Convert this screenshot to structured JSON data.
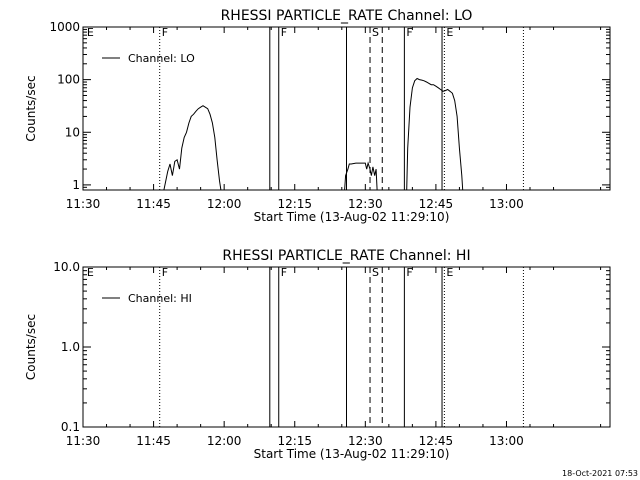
{
  "footer_timestamp": "18-Oct-2021 07:53",
  "chart_data": [
    {
      "type": "line",
      "title": "RHESSI PARTICLE_RATE Channel: LO",
      "xlabel": "Start Time (13-Aug-02 11:29:10)",
      "ylabel": "Counts/sec",
      "yscale": "log",
      "ylim": [
        0.8,
        1000
      ],
      "xlim_minutes": [
        0,
        112
      ],
      "x_tick_labels": [
        "11:30",
        "11:45",
        "12:00",
        "12:15",
        "12:30",
        "12:45",
        "13:00"
      ],
      "x_ticks_minutes": [
        0,
        15,
        30,
        45,
        60,
        75,
        90
      ],
      "y_ticks": [
        1,
        10,
        100,
        1000
      ],
      "y_tick_labels": [
        "1",
        "10",
        "100",
        "1000"
      ],
      "legend": {
        "label": "Channel: LO",
        "placement": "top-left"
      },
      "markers": [
        {
          "minute": 0.4,
          "label": "E",
          "style": "none"
        },
        {
          "minute": 16.3,
          "label": "F",
          "style": "dotted"
        },
        {
          "minute": 39.7,
          "label": "",
          "style": "solid"
        },
        {
          "minute": 41.6,
          "label": "F",
          "style": "solid"
        },
        {
          "minute": 56.0,
          "label": "",
          "style": "solid"
        },
        {
          "minute": 61.0,
          "label": "S",
          "style": "dashed"
        },
        {
          "minute": 63.6,
          "label": "",
          "style": "dashed"
        },
        {
          "minute": 68.3,
          "label": "F",
          "style": "solid"
        },
        {
          "minute": 76.3,
          "label": "",
          "style": "solid"
        },
        {
          "minute": 76.8,
          "label": "E",
          "style": "dotted"
        },
        {
          "minute": 93.6,
          "label": "",
          "style": "dotted"
        }
      ],
      "series": [
        {
          "segments": [
            [
              [
                17.2,
                0.8
              ],
              [
                18,
                1.8
              ],
              [
                18.5,
                2.5
              ],
              [
                19,
                1.5
              ],
              [
                19.5,
                2.8
              ],
              [
                20,
                3.0
              ],
              [
                20.5,
                2.0
              ],
              [
                21,
                5.0
              ],
              [
                21.5,
                8.0
              ],
              [
                22,
                10
              ],
              [
                22.5,
                15
              ],
              [
                23,
                20
              ],
              [
                23.5,
                22
              ],
              [
                24,
                25
              ],
              [
                24.5,
                28
              ],
              [
                25,
                30
              ],
              [
                25.5,
                32
              ],
              [
                26,
                30
              ],
              [
                26.5,
                28
              ],
              [
                27,
                22
              ],
              [
                27.5,
                15
              ],
              [
                28,
                8
              ],
              [
                28.5,
                3
              ],
              [
                29,
                1.2
              ],
              [
                29.3,
                0.8
              ]
            ],
            [
              [
                55.6,
                0.8
              ],
              [
                55.8,
                1.5
              ],
              [
                56.3,
                2.0
              ],
              [
                56.6,
                2.5
              ],
              [
                57,
                2.5
              ],
              [
                58,
                2.6
              ],
              [
                59,
                2.6
              ],
              [
                60,
                2.6
              ],
              [
                60.3,
                2.0
              ],
              [
                60.6,
                2.6
              ],
              [
                61,
                2.0
              ],
              [
                61.3,
                1.5
              ],
              [
                61.6,
                2.2
              ],
              [
                62,
                1.5
              ],
              [
                62.3,
                2.0
              ],
              [
                62.5,
                0.8
              ]
            ],
            [
              [
                68.8,
                0.8
              ],
              [
                69,
                5
              ],
              [
                69.5,
                30
              ],
              [
                70,
                70
              ],
              [
                70.5,
                95
              ],
              [
                71,
                105
              ],
              [
                71.5,
                100
              ],
              [
                72,
                98
              ],
              [
                72.5,
                95
              ],
              [
                73,
                90
              ],
              [
                73.5,
                85
              ],
              [
                74,
                80
              ],
              [
                74.5,
                80
              ],
              [
                75,
                75
              ],
              [
                75.5,
                70
              ],
              [
                76,
                65
              ],
              [
                76.5,
                60
              ],
              [
                77,
                62
              ],
              [
                77.5,
                65
              ],
              [
                78,
                60
              ],
              [
                78.5,
                55
              ],
              [
                79,
                40
              ],
              [
                79.5,
                20
              ],
              [
                80,
                5
              ],
              [
                80.5,
                1.5
              ],
              [
                80.7,
                0.8
              ]
            ]
          ]
        }
      ]
    },
    {
      "type": "line",
      "title": "RHESSI PARTICLE_RATE Channel: HI",
      "xlabel": "Start Time (13-Aug-02 11:29:10)",
      "ylabel": "Counts/sec",
      "yscale": "log",
      "ylim": [
        0.1,
        10
      ],
      "xlim_minutes": [
        0,
        112
      ],
      "x_tick_labels": [
        "11:30",
        "11:45",
        "12:00",
        "12:15",
        "12:30",
        "12:45",
        "13:00"
      ],
      "x_ticks_minutes": [
        0,
        15,
        30,
        45,
        60,
        75,
        90
      ],
      "y_ticks": [
        0.1,
        1,
        10
      ],
      "y_tick_labels": [
        "0.1",
        "1.0",
        "10.0"
      ],
      "legend": {
        "label": "Channel: HI",
        "placement": "top-left"
      },
      "markers": [
        {
          "minute": 0.4,
          "label": "E",
          "style": "none"
        },
        {
          "minute": 16.3,
          "label": "F",
          "style": "dotted"
        },
        {
          "minute": 39.7,
          "label": "",
          "style": "solid"
        },
        {
          "minute": 41.6,
          "label": "F",
          "style": "solid"
        },
        {
          "minute": 56.0,
          "label": "",
          "style": "solid"
        },
        {
          "minute": 61.0,
          "label": "S",
          "style": "dashed"
        },
        {
          "minute": 63.6,
          "label": "",
          "style": "dashed"
        },
        {
          "minute": 68.3,
          "label": "F",
          "style": "solid"
        },
        {
          "minute": 76.3,
          "label": "",
          "style": "solid"
        },
        {
          "minute": 76.8,
          "label": "E",
          "style": "dotted"
        },
        {
          "minute": 93.6,
          "label": "",
          "style": "dotted"
        }
      ],
      "series": []
    }
  ]
}
